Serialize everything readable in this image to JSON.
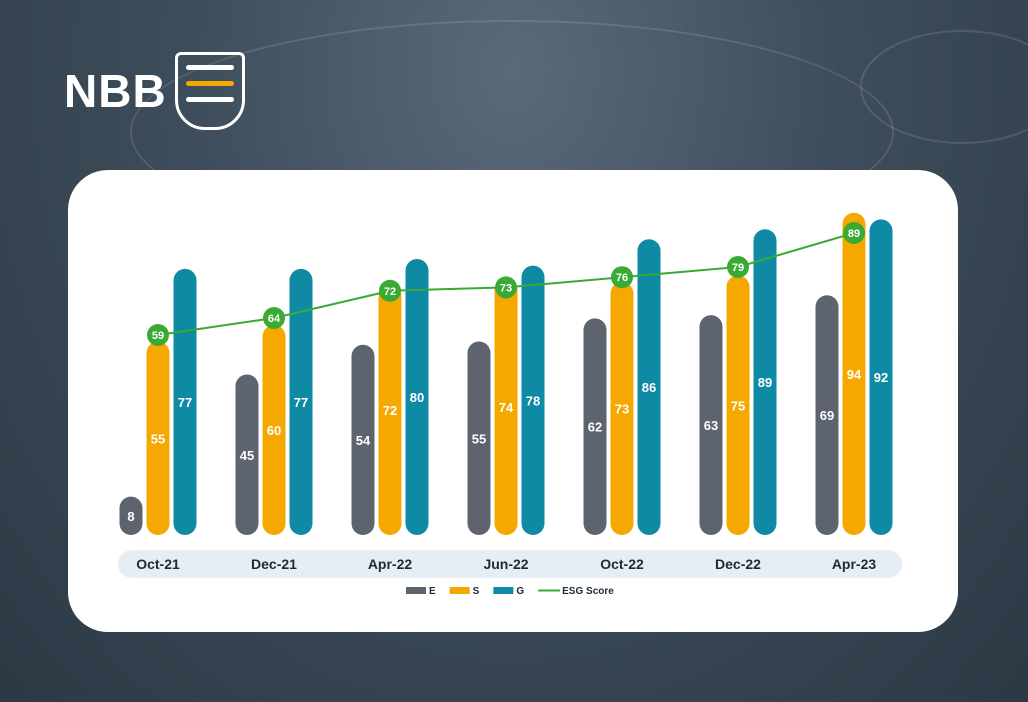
{
  "brand": {
    "name": "NBB"
  },
  "chart_data": {
    "type": "bar",
    "categories": [
      "Oct-21",
      "Dec-21",
      "Apr-22",
      "Jun-22",
      "Oct-22",
      "Dec-22",
      "Apr-23"
    ],
    "series": [
      {
        "name": "E",
        "type": "bar",
        "color": "#5d6470",
        "values": [
          8,
          45,
          54,
          55,
          62,
          63,
          69
        ]
      },
      {
        "name": "S",
        "type": "bar",
        "color": "#f5a800",
        "values": [
          55,
          60,
          72,
          74,
          73,
          75,
          94
        ]
      },
      {
        "name": "G",
        "type": "bar",
        "color": "#0f8aa5",
        "values": [
          77,
          77,
          80,
          78,
          86,
          89,
          92
        ]
      },
      {
        "name": "ESG Score",
        "type": "line",
        "color": "#3aaa35",
        "values": [
          59,
          64,
          72,
          73,
          76,
          79,
          89
        ]
      }
    ],
    "legend": "bottom",
    "grid": false
  }
}
